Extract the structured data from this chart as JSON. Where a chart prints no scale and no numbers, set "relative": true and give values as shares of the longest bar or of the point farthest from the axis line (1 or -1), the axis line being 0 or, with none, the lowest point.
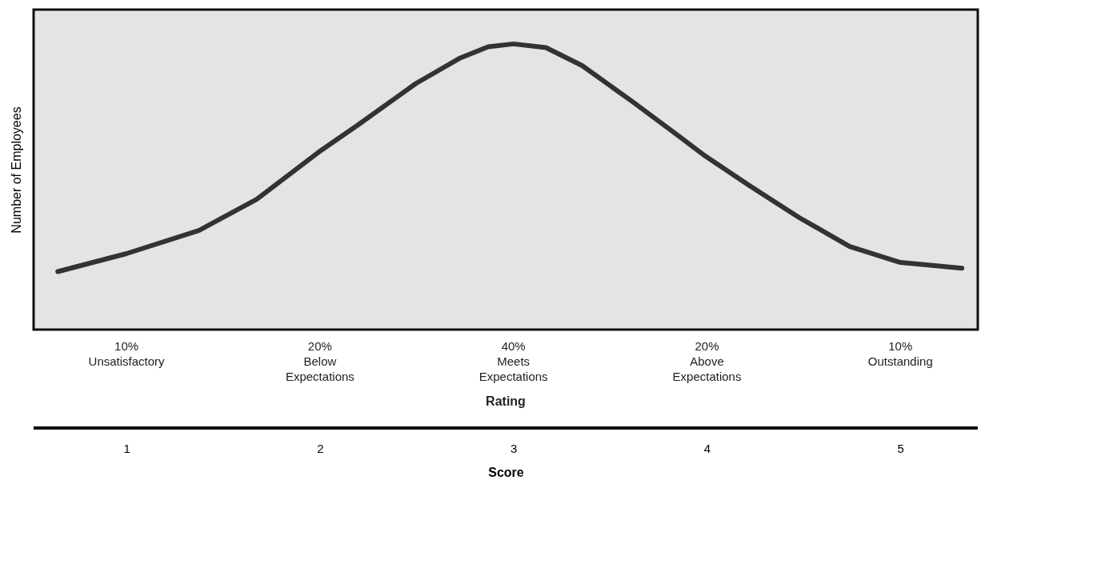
{
  "chart_data": {
    "type": "line",
    "relative": true,
    "ylabel": "Number of Employees",
    "xlabel": "Score",
    "xlim": [
      0.52,
      5.4
    ],
    "xticks": [
      1,
      2,
      3,
      4,
      5
    ],
    "annotations": [
      "10%\nUnsatisfactory",
      "20%\nBelow\nExpectations",
      "40%\nMeets\nExpectations",
      "20%\nAbove\nExpectations",
      "10%\nOutstanding",
      "Rating"
    ],
    "grid": false,
    "legend": false,
    "marker": "none",
    "line_style": "solid",
    "series": [
      {
        "color": "#333333",
        "x": [
          0.645,
          1.0,
          1.374,
          1.673,
          1.991,
          2.196,
          2.495,
          2.72,
          2.869,
          3.0,
          3.168,
          3.355,
          3.617,
          3.841,
          3.99,
          4.215,
          4.477,
          4.738,
          5.0,
          5.318
        ],
        "values": [
          0.203,
          0.266,
          0.347,
          0.456,
          0.62,
          0.716,
          0.861,
          0.949,
          0.99,
          1.0,
          0.987,
          0.924,
          0.797,
          0.684,
          0.608,
          0.506,
          0.392,
          0.291,
          0.235,
          0.215
        ]
      }
    ]
  }
}
